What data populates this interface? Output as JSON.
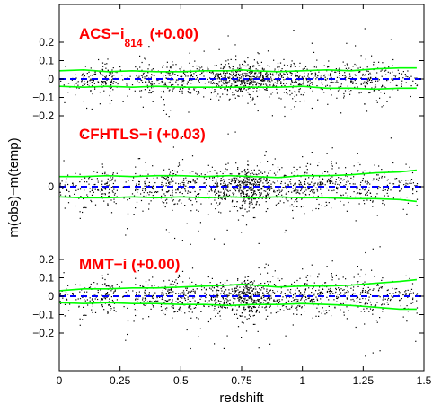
{
  "chart_data": {
    "type": "scatter",
    "xlabel": "redshift",
    "ylabel": "m(obs)−m(temp)",
    "xlim": [
      0,
      1.5
    ],
    "x_ticks": [
      0,
      0.25,
      0.5,
      0.75,
      1,
      1.25,
      1.5
    ],
    "x_tick_labels": [
      "0",
      "0.25",
      "0.5",
      "0.75",
      "1",
      "1.25",
      "1.5"
    ],
    "y_tick_labels": [
      "−0.2",
      "−0.1",
      "0",
      "0.1",
      "0.2"
    ],
    "grid": false,
    "zero_line": {
      "style": "dashed",
      "color": "#0000ff"
    },
    "envelope": {
      "color": "#00ff00"
    },
    "points_color": "#000000",
    "label_color": "#ff0000",
    "panels": [
      {
        "label_main": "ACS−i",
        "label_sub": "814",
        "label_offset": "(+0.00)",
        "ylim": [
          -0.27,
          0.28
        ],
        "yticks": [
          -0.2,
          -0.1,
          0,
          0.1,
          0.2
        ],
        "scatter_sigma": 0.045,
        "upper_envelope": [
          [
            0.0,
            0.045
          ],
          [
            0.1,
            0.05
          ],
          [
            0.2,
            0.04
          ],
          [
            0.3,
            0.045
          ],
          [
            0.4,
            0.04
          ],
          [
            0.5,
            0.04
          ],
          [
            0.6,
            0.045
          ],
          [
            0.7,
            0.045
          ],
          [
            0.75,
            0.05
          ],
          [
            0.8,
            0.045
          ],
          [
            0.9,
            0.04
          ],
          [
            1.0,
            0.045
          ],
          [
            1.1,
            0.05
          ],
          [
            1.2,
            0.045
          ],
          [
            1.3,
            0.055
          ],
          [
            1.4,
            0.06
          ],
          [
            1.47,
            0.06
          ]
        ],
        "lower_envelope": [
          [
            0.0,
            -0.04
          ],
          [
            0.1,
            -0.045
          ],
          [
            0.2,
            -0.04
          ],
          [
            0.3,
            -0.045
          ],
          [
            0.4,
            -0.04
          ],
          [
            0.5,
            -0.045
          ],
          [
            0.6,
            -0.045
          ],
          [
            0.7,
            -0.045
          ],
          [
            0.8,
            -0.045
          ],
          [
            0.9,
            -0.045
          ],
          [
            1.0,
            -0.04
          ],
          [
            1.1,
            -0.05
          ],
          [
            1.2,
            -0.05
          ],
          [
            1.3,
            -0.055
          ],
          [
            1.4,
            -0.05
          ],
          [
            1.47,
            -0.05
          ]
        ]
      },
      {
        "label_main": "CFHTLS−i (+0.03)",
        "label_sub": "",
        "label_offset": "",
        "ylim": [
          -0.27,
          0.28
        ],
        "yticks": [
          0
        ],
        "scatter_sigma": 0.055,
        "upper_envelope": [
          [
            0.0,
            0.055
          ],
          [
            0.1,
            0.055
          ],
          [
            0.2,
            0.06
          ],
          [
            0.3,
            0.055
          ],
          [
            0.4,
            0.06
          ],
          [
            0.5,
            0.06
          ],
          [
            0.6,
            0.055
          ],
          [
            0.7,
            0.06
          ],
          [
            0.8,
            0.055
          ],
          [
            0.9,
            0.05
          ],
          [
            1.0,
            0.06
          ],
          [
            1.1,
            0.06
          ],
          [
            1.2,
            0.065
          ],
          [
            1.3,
            0.075
          ],
          [
            1.4,
            0.08
          ],
          [
            1.47,
            0.09
          ]
        ],
        "lower_envelope": [
          [
            0.0,
            -0.055
          ],
          [
            0.1,
            -0.06
          ],
          [
            0.2,
            -0.06
          ],
          [
            0.3,
            -0.055
          ],
          [
            0.4,
            -0.06
          ],
          [
            0.5,
            -0.055
          ],
          [
            0.6,
            -0.06
          ],
          [
            0.7,
            -0.055
          ],
          [
            0.8,
            -0.06
          ],
          [
            0.9,
            -0.055
          ],
          [
            1.0,
            -0.06
          ],
          [
            1.1,
            -0.06
          ],
          [
            1.2,
            -0.065
          ],
          [
            1.3,
            -0.065
          ],
          [
            1.4,
            -0.07
          ],
          [
            1.47,
            -0.08
          ]
        ]
      },
      {
        "label_main": "MMT−i (+0.00)",
        "label_sub": "",
        "label_offset": "",
        "ylim": [
          -0.27,
          0.28
        ],
        "yticks": [
          -0.2,
          -0.1,
          0,
          0.1,
          0.2
        ],
        "scatter_sigma": 0.05,
        "upper_envelope": [
          [
            0.0,
            0.03
          ],
          [
            0.1,
            0.04
          ],
          [
            0.2,
            0.04
          ],
          [
            0.3,
            0.045
          ],
          [
            0.4,
            0.045
          ],
          [
            0.5,
            0.05
          ],
          [
            0.6,
            0.055
          ],
          [
            0.7,
            0.06
          ],
          [
            0.75,
            0.065
          ],
          [
            0.8,
            0.06
          ],
          [
            0.9,
            0.05
          ],
          [
            1.0,
            0.055
          ],
          [
            1.1,
            0.055
          ],
          [
            1.2,
            0.06
          ],
          [
            1.3,
            0.07
          ],
          [
            1.4,
            0.08
          ],
          [
            1.47,
            0.09
          ]
        ],
        "lower_envelope": [
          [
            0.0,
            -0.035
          ],
          [
            0.1,
            -0.04
          ],
          [
            0.2,
            -0.035
          ],
          [
            0.3,
            -0.04
          ],
          [
            0.4,
            -0.04
          ],
          [
            0.5,
            -0.045
          ],
          [
            0.6,
            -0.045
          ],
          [
            0.7,
            -0.05
          ],
          [
            0.8,
            -0.045
          ],
          [
            0.9,
            -0.045
          ],
          [
            1.0,
            -0.04
          ],
          [
            1.1,
            -0.045
          ],
          [
            1.2,
            -0.05
          ],
          [
            1.3,
            -0.06
          ],
          [
            1.4,
            -0.07
          ],
          [
            1.47,
            -0.07
          ]
        ]
      }
    ]
  }
}
